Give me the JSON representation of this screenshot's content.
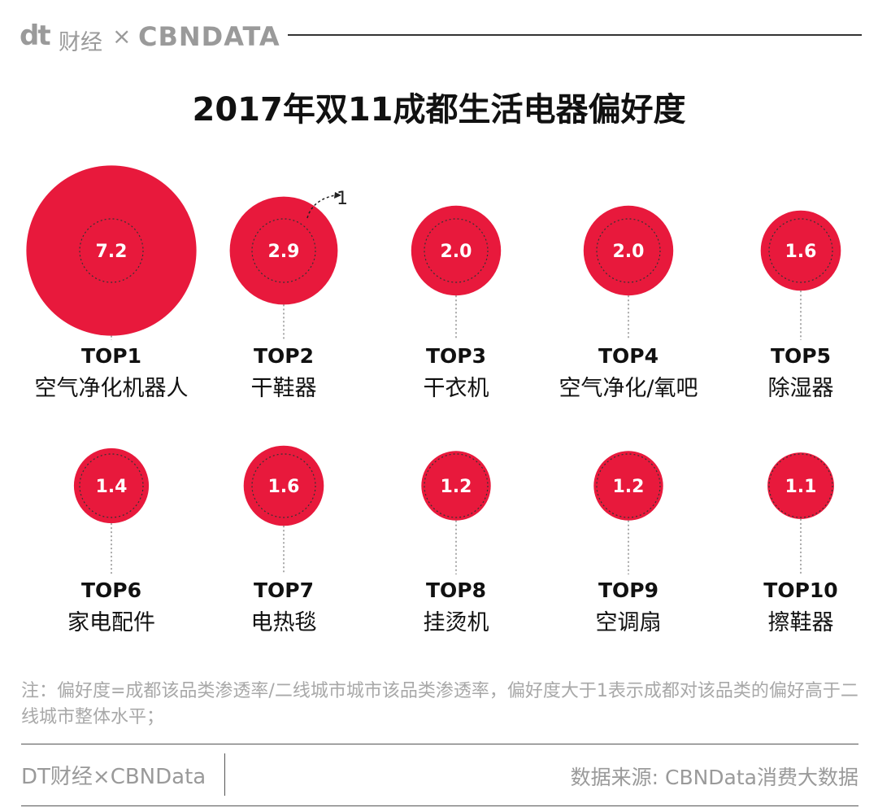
{
  "header": {
    "brand_dt": "dt",
    "brand_cn": "财经",
    "brand_x": "×",
    "brand_cbn": "CBNDATA"
  },
  "title": "2017年双11成都生活电器偏好度",
  "annotation": "1",
  "note": "注：偏好度=成都该品类渗透率/二线城市城市该品类渗透率，偏好度大于1表示成都对该品类的偏好高于二线城市整体水平；",
  "footer": {
    "left": "DT财经×CBNData",
    "right": "数据来源: CBNData消费大数据"
  },
  "colors": {
    "bubble": "#e8193c",
    "brand_gray": "#9a9a9a",
    "note_gray": "#a8a8a8"
  },
  "chart_data": {
    "type": "bubble",
    "title": "2017年双11成都生活电器偏好度",
    "reference_value": 1,
    "items": [
      {
        "rank": "TOP1",
        "category": "空气净化机器人",
        "value": 7.2,
        "value_label": "7.2"
      },
      {
        "rank": "TOP2",
        "category": "干鞋器",
        "value": 2.9,
        "value_label": "2.9"
      },
      {
        "rank": "TOP3",
        "category": "干衣机",
        "value": 2.0,
        "value_label": "2.0"
      },
      {
        "rank": "TOP4",
        "category": "空气净化/氧吧",
        "value": 2.0,
        "value_label": "2.0"
      },
      {
        "rank": "TOP5",
        "category": "除湿器",
        "value": 1.6,
        "value_label": "1.6"
      },
      {
        "rank": "TOP6",
        "category": "家电配件",
        "value": 1.4,
        "value_label": "1.4"
      },
      {
        "rank": "TOP7",
        "category": "电热毯",
        "value": 1.6,
        "value_label": "1.6"
      },
      {
        "rank": "TOP8",
        "category": "挂烫机",
        "value": 1.2,
        "value_label": "1.2"
      },
      {
        "rank": "TOP9",
        "category": "空调扇",
        "value": 1.2,
        "value_label": "1.2"
      },
      {
        "rank": "TOP10",
        "category": "擦鞋器",
        "value": 1.1,
        "value_label": "1.1"
      }
    ]
  }
}
